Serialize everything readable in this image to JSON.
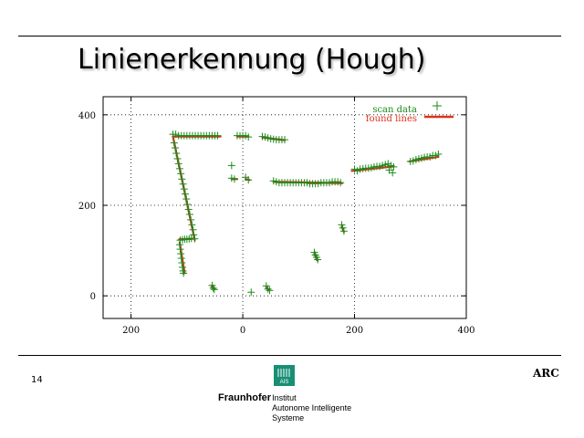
{
  "slide": {
    "title": "Linienerkennung (Hough)",
    "page_number": "14",
    "footer_right": "ARC",
    "logo": {
      "org": "Fraunhofer",
      "badge": "AIS",
      "lines": [
        "Institut",
        "Autonome Intelligente",
        "Systeme"
      ]
    }
  },
  "colors": {
    "scan": "#1a8a1a",
    "lines": "#e0301a",
    "axis": "#000000"
  },
  "chart_data": {
    "type": "scatter",
    "title": "",
    "xlabel": "",
    "ylabel": "",
    "xlim": [
      -250,
      400
    ],
    "ylim": [
      -50,
      440
    ],
    "grid": "dotted",
    "legend_placement": "top-right",
    "x_ticks": [
      {
        "value": -200,
        "label": "200"
      },
      {
        "value": 0,
        "label": "0"
      },
      {
        "value": 200,
        "label": "200"
      },
      {
        "value": 400,
        "label": "400"
      }
    ],
    "y_ticks": [
      {
        "value": 0,
        "label": "0"
      },
      {
        "value": 200,
        "label": "200"
      },
      {
        "value": 400,
        "label": "400"
      }
    ],
    "series": [
      {
        "name": "scan data",
        "marker": "plus",
        "points": [
          [
            -125,
            357
          ],
          [
            -120,
            357
          ],
          [
            -115,
            354
          ],
          [
            -110,
            354
          ],
          [
            -105,
            354
          ],
          [
            -100,
            354
          ],
          [
            -95,
            354
          ],
          [
            -90,
            354
          ],
          [
            -85,
            354
          ],
          [
            -80,
            354
          ],
          [
            -75,
            354
          ],
          [
            -70,
            354
          ],
          [
            -65,
            354
          ],
          [
            -60,
            354
          ],
          [
            -55,
            354
          ],
          [
            -50,
            354
          ],
          [
            -45,
            354
          ],
          [
            -10,
            354
          ],
          [
            -5,
            354
          ],
          [
            0,
            354
          ],
          [
            5,
            354
          ],
          [
            10,
            351
          ],
          [
            35,
            352
          ],
          [
            40,
            351
          ],
          [
            45,
            349
          ],
          [
            50,
            347
          ],
          [
            55,
            346
          ],
          [
            60,
            345
          ],
          [
            65,
            345
          ],
          [
            70,
            345
          ],
          [
            75,
            345
          ],
          [
            -123,
            338
          ],
          [
            -121,
            327
          ],
          [
            -119,
            315
          ],
          [
            -117,
            303
          ],
          [
            -115,
            292
          ],
          [
            -113,
            281
          ],
          [
            -111,
            270
          ],
          [
            -109,
            258
          ],
          [
            -107,
            247
          ],
          [
            -105,
            236
          ],
          [
            -103,
            225
          ],
          [
            -101,
            214
          ],
          [
            -99,
            202
          ],
          [
            -97,
            191
          ],
          [
            -95,
            180
          ],
          [
            -93,
            168
          ],
          [
            -91,
            157
          ],
          [
            -89,
            146
          ],
          [
            -88,
            135
          ],
          [
            -86,
            126
          ],
          [
            -112,
            123
          ],
          [
            -108,
            124
          ],
          [
            -104,
            125
          ],
          [
            -100,
            125
          ],
          [
            -96,
            126
          ],
          [
            -92,
            127
          ],
          [
            -113,
            113
          ],
          [
            -112,
            103
          ],
          [
            -111,
            93
          ],
          [
            -110,
            83
          ],
          [
            -109,
            73
          ],
          [
            -108,
            63
          ],
          [
            -107,
            55
          ],
          [
            -106,
            50
          ],
          [
            -55,
            23
          ],
          [
            -53,
            17
          ],
          [
            -51,
            14
          ],
          [
            15,
            8
          ],
          [
            42,
            22
          ],
          [
            45,
            15
          ],
          [
            48,
            12
          ],
          [
            -20,
            288
          ],
          [
            -20,
            260
          ],
          [
            -15,
            258
          ],
          [
            5,
            262
          ],
          [
            10,
            256
          ],
          [
            55,
            254
          ],
          [
            60,
            252
          ],
          [
            65,
            250
          ],
          [
            70,
            250
          ],
          [
            75,
            250
          ],
          [
            80,
            250
          ],
          [
            85,
            250
          ],
          [
            90,
            250
          ],
          [
            95,
            250
          ],
          [
            100,
            250
          ],
          [
            105,
            250
          ],
          [
            110,
            250
          ],
          [
            115,
            250
          ],
          [
            120,
            248
          ],
          [
            125,
            248
          ],
          [
            130,
            248
          ],
          [
            135,
            248
          ],
          [
            140,
            250
          ],
          [
            145,
            250
          ],
          [
            150,
            250
          ],
          [
            155,
            250
          ],
          [
            160,
            252
          ],
          [
            165,
            252
          ],
          [
            170,
            252
          ],
          [
            175,
            250
          ],
          [
            128,
            96
          ],
          [
            130,
            90
          ],
          [
            132,
            85
          ],
          [
            134,
            80
          ],
          [
            177,
            157
          ],
          [
            179,
            150
          ],
          [
            181,
            143
          ],
          [
            200,
            280
          ],
          [
            205,
            276
          ],
          [
            210,
            280
          ],
          [
            215,
            281
          ],
          [
            220,
            282
          ],
          [
            225,
            282
          ],
          [
            230,
            283
          ],
          [
            235,
            285
          ],
          [
            240,
            286
          ],
          [
            245,
            286
          ],
          [
            250,
            288
          ],
          [
            255,
            290
          ],
          [
            260,
            292
          ],
          [
            262,
            278
          ],
          [
            265,
            288
          ],
          [
            268,
            272
          ],
          [
            270,
            285
          ],
          [
            300,
            297
          ],
          [
            305,
            298
          ],
          [
            310,
            301
          ],
          [
            315,
            303
          ],
          [
            320,
            304
          ],
          [
            325,
            306
          ],
          [
            330,
            307
          ],
          [
            335,
            307
          ],
          [
            340,
            310
          ],
          [
            345,
            310
          ],
          [
            350,
            313
          ]
        ]
      },
      {
        "name": "found lines",
        "marker": "line",
        "segments": [
          [
            [
              -125,
              352
            ],
            [
              -40,
              352
            ]
          ],
          [
            [
              -10,
              352
            ],
            [
              10,
              352
            ]
          ],
          [
            [
              35,
              350
            ],
            [
              75,
              344
            ]
          ],
          [
            [
              -125,
              352
            ],
            [
              -86,
              123
            ]
          ],
          [
            [
              -114,
              125
            ],
            [
              -90,
              126
            ]
          ],
          [
            [
              -113,
              118
            ],
            [
              -104,
              50
            ]
          ],
          [
            [
              -56,
              21
            ],
            [
              -50,
              15
            ]
          ],
          [
            [
              42,
              19
            ],
            [
              48,
              12
            ]
          ],
          [
            [
              -20,
              258
            ],
            [
              -10,
              258
            ]
          ],
          [
            [
              5,
              258
            ],
            [
              12,
              256
            ]
          ],
          [
            [
              55,
              252
            ],
            [
              178,
              249
            ]
          ],
          [
            [
              128,
              93
            ],
            [
              134,
              78
            ]
          ],
          [
            [
              177,
              153
            ],
            [
              181,
              141
            ]
          ],
          [
            [
              195,
              276
            ],
            [
              270,
              286
            ]
          ],
          [
            [
              298,
              297
            ],
            [
              350,
              307
            ]
          ]
        ]
      }
    ]
  }
}
